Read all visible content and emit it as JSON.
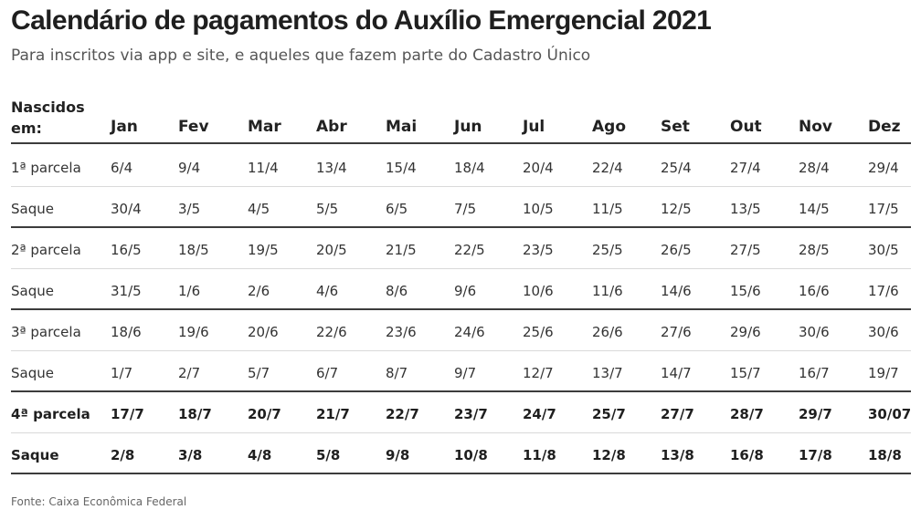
{
  "title": "Calendário de pagamentos do Auxílio Emergencial 2021",
  "subtitle": "Para inscritos via app e site, e aqueles que fazem parte do Cadastro Único",
  "table": {
    "header_label_line1": "Nascidos",
    "header_label_line2": "em:",
    "months": [
      "Jan",
      "Fev",
      "Mar",
      "Abr",
      "Mai",
      "Jun",
      "Jul",
      "Ago",
      "Set",
      "Out",
      "Nov",
      "Dez"
    ],
    "rows": [
      {
        "label": "1ª parcela",
        "values": [
          "6/4",
          "9/4",
          "11/4",
          "13/4",
          "15/4",
          "18/4",
          "20/4",
          "22/4",
          "25/4",
          "27/4",
          "28/4",
          "29/4"
        ]
      },
      {
        "label": "Saque",
        "values": [
          "30/4",
          "3/5",
          "4/5",
          "5/5",
          "6/5",
          "7/5",
          "10/5",
          "11/5",
          "12/5",
          "13/5",
          "14/5",
          "17/5"
        ]
      },
      {
        "label": "2ª parcela",
        "values": [
          "16/5",
          "18/5",
          "19/5",
          "20/5",
          "21/5",
          "22/5",
          "23/5",
          "25/5",
          "26/5",
          "27/5",
          "28/5",
          "30/5"
        ]
      },
      {
        "label": "Saque",
        "values": [
          "31/5",
          "1/6",
          "2/6",
          "4/6",
          "8/6",
          "9/6",
          "10/6",
          "11/6",
          "14/6",
          "15/6",
          "16/6",
          "17/6"
        ]
      },
      {
        "label": "3ª parcela",
        "values": [
          "18/6",
          "19/6",
          "20/6",
          "22/6",
          "23/6",
          "24/6",
          "25/6",
          "26/6",
          "27/6",
          "29/6",
          "30/6",
          "30/6"
        ]
      },
      {
        "label": "Saque",
        "values": [
          "1/7",
          "2/7",
          "5/7",
          "6/7",
          "8/7",
          "9/7",
          "12/7",
          "13/7",
          "14/7",
          "15/7",
          "16/7",
          "19/7"
        ]
      },
      {
        "label": "4ª parcela",
        "values": [
          "17/7",
          "18/7",
          "20/7",
          "21/7",
          "22/7",
          "23/7",
          "24/7",
          "25/7",
          "27/7",
          "28/7",
          "29/7",
          "30/07"
        ]
      },
      {
        "label": "Saque",
        "values": [
          "2/8",
          "3/8",
          "4/8",
          "5/8",
          "9/8",
          "10/8",
          "11/8",
          "12/8",
          "13/8",
          "16/8",
          "17/8",
          "18/8"
        ]
      }
    ]
  },
  "footer": "Fonte: Caixa Econômica Federal"
}
